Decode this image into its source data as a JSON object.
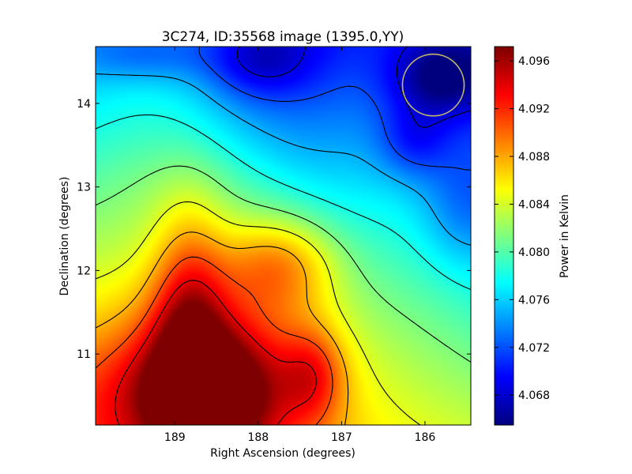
{
  "chart_data": {
    "type": "heatmap",
    "title": "3C274, ID:35568 image (1395.0,YY)",
    "xlabel": "Right Ascension (degrees)",
    "ylabel": "Declination (degrees)",
    "xlim": [
      189.95,
      185.45
    ],
    "ylim": [
      10.15,
      14.68
    ],
    "x_reversed": true,
    "xticks": [
      189,
      188,
      187,
      186
    ],
    "xtick_labels": [
      "189",
      "188",
      "187",
      "186"
    ],
    "yticks": [
      11,
      12,
      13,
      14
    ],
    "ytick_labels": [
      "11",
      "12",
      "13",
      "14"
    ],
    "colorbar": {
      "label": "Power in Kelvin",
      "range": [
        4.0655,
        4.0972
      ],
      "ticks": [
        4.068,
        4.072,
        4.076,
        4.08,
        4.084,
        4.088,
        4.092,
        4.096
      ],
      "tick_labels": [
        "4.068",
        "4.072",
        "4.076",
        "4.080",
        "4.084",
        "4.088",
        "4.092",
        "4.096"
      ],
      "colormap": "jet"
    },
    "contours": true,
    "grid": false,
    "beam_circle": {
      "ra": 185.9,
      "dec": 14.22,
      "radius_deg": 0.37,
      "color": "#c8b96a"
    },
    "features": [
      {
        "kind": "maximum",
        "ra": 188.62,
        "dec": 10.38,
        "value": 4.0965
      },
      {
        "kind": "local-max",
        "ra": 187.6,
        "dec": 12.1,
        "value": 4.092
      },
      {
        "kind": "local-max",
        "ra": 187.3,
        "dec": 10.6,
        "value": 4.091
      },
      {
        "kind": "minimum",
        "ra": 185.85,
        "dec": 14.45,
        "value": 4.0665
      },
      {
        "kind": "local-min",
        "ra": 187.95,
        "dec": 14.55,
        "value": 4.069
      },
      {
        "kind": "local-min",
        "ra": 185.8,
        "dec": 13.6,
        "value": 4.07
      }
    ]
  }
}
